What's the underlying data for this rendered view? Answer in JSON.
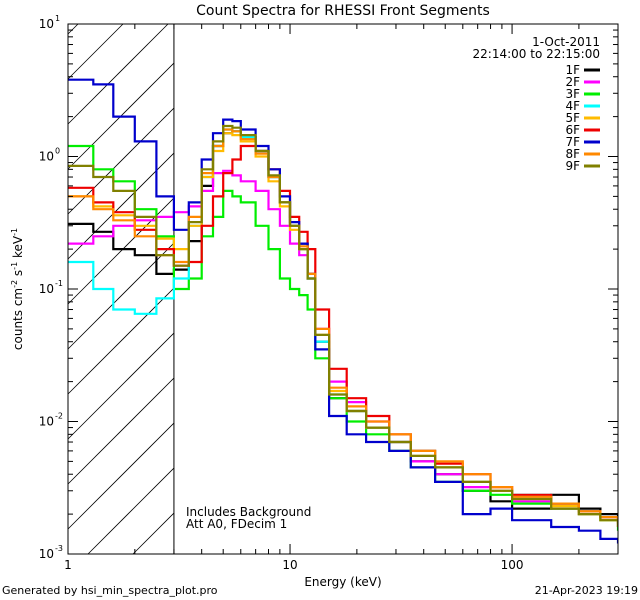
{
  "chart_data": {
    "type": "line",
    "title": "Count Spectra for RHESSI Front Segments",
    "xlabel": "Energy (keV)",
    "ylabel_parts": {
      "a": "counts cm",
      "e1": "-2",
      "b": " s",
      "e2": "-1",
      "c": " keV",
      "e3": "-1"
    },
    "x_scale": "log",
    "y_scale": "log",
    "xlim": [
      1,
      300
    ],
    "ylim": [
      0.001,
      10
    ],
    "x_ticks": [
      {
        "value": 1,
        "label": "1"
      },
      {
        "value": 10,
        "label": "10"
      },
      {
        "value": 100,
        "label": "100"
      }
    ],
    "y_ticks": [
      {
        "value": 10,
        "base": "10",
        "exp": "1"
      },
      {
        "value": 1,
        "base": "10",
        "exp": "0"
      },
      {
        "value": 0.1,
        "base": "10",
        "exp": "-1"
      },
      {
        "value": 0.01,
        "base": "10",
        "exp": "-2"
      },
      {
        "value": 0.001,
        "base": "10",
        "exp": "-3"
      }
    ],
    "shaded_region": {
      "x_from": 1,
      "x_to": 3
    },
    "date": "1-Oct-2011",
    "time_range": "22:14:00 to 22:15:00",
    "annotations": [
      "Includes Background",
      "Att A0, FDecim 1"
    ],
    "series": [
      {
        "name": "1F",
        "color": "#000000",
        "points": [
          [
            1.0,
            0.31
          ],
          [
            1.3,
            0.27
          ],
          [
            1.6,
            0.2
          ],
          [
            2.0,
            0.18
          ],
          [
            2.5,
            0.13
          ],
          [
            3.0,
            0.14
          ],
          [
            3.5,
            0.23
          ],
          [
            4.0,
            0.6
          ],
          [
            4.5,
            1.2
          ],
          [
            5.0,
            1.5
          ],
          [
            5.5,
            1.55
          ],
          [
            6.0,
            1.4
          ],
          [
            7.0,
            1.1
          ],
          [
            8.0,
            0.7
          ],
          [
            9.0,
            0.45
          ],
          [
            10.0,
            0.3
          ],
          [
            11.0,
            0.22
          ],
          [
            12.0,
            0.12
          ],
          [
            13.0,
            0.04
          ],
          [
            15.0,
            0.015
          ],
          [
            18.0,
            0.012
          ],
          [
            22.0,
            0.009
          ],
          [
            28.0,
            0.007
          ],
          [
            35.0,
            0.005
          ],
          [
            45.0,
            0.004
          ],
          [
            60.0,
            0.003
          ],
          [
            80.0,
            0.0025
          ],
          [
            100.0,
            0.0022
          ],
          [
            150.0,
            0.0028
          ],
          [
            200.0,
            0.0022
          ],
          [
            250.0,
            0.002
          ],
          [
            300.0,
            0.0018
          ]
        ]
      },
      {
        "name": "2F",
        "color": "#ff00ff",
        "points": [
          [
            1.0,
            0.22
          ],
          [
            1.3,
            0.25
          ],
          [
            1.6,
            0.3
          ],
          [
            2.0,
            0.33
          ],
          [
            2.5,
            0.35
          ],
          [
            3.0,
            0.38
          ],
          [
            3.5,
            0.42
          ],
          [
            4.0,
            0.55
          ],
          [
            4.5,
            0.75
          ],
          [
            5.0,
            0.78
          ],
          [
            5.5,
            0.72
          ],
          [
            6.0,
            0.65
          ],
          [
            7.0,
            0.55
          ],
          [
            8.0,
            0.4
          ],
          [
            9.0,
            0.3
          ],
          [
            10.0,
            0.22
          ],
          [
            11.0,
            0.18
          ],
          [
            12.0,
            0.13
          ],
          [
            13.0,
            0.05
          ],
          [
            15.0,
            0.02
          ],
          [
            18.0,
            0.014
          ],
          [
            22.0,
            0.01
          ],
          [
            28.0,
            0.007
          ],
          [
            35.0,
            0.005
          ],
          [
            45.0,
            0.004
          ],
          [
            60.0,
            0.0032
          ],
          [
            80.0,
            0.003
          ],
          [
            100.0,
            0.0025
          ],
          [
            150.0,
            0.0022
          ],
          [
            200.0,
            0.002
          ],
          [
            250.0,
            0.0019
          ],
          [
            300.0,
            0.0018
          ]
        ]
      },
      {
        "name": "3F",
        "color": "#00ee00",
        "points": [
          [
            1.0,
            1.2
          ],
          [
            1.3,
            0.8
          ],
          [
            1.6,
            0.65
          ],
          [
            2.0,
            0.4
          ],
          [
            2.5,
            0.25
          ],
          [
            3.0,
            0.1
          ],
          [
            3.5,
            0.12
          ],
          [
            4.0,
            0.25
          ],
          [
            4.5,
            0.35
          ],
          [
            5.0,
            0.55
          ],
          [
            5.5,
            0.5
          ],
          [
            6.0,
            0.45
          ],
          [
            7.0,
            0.3
          ],
          [
            8.0,
            0.2
          ],
          [
            9.0,
            0.12
          ],
          [
            10.0,
            0.1
          ],
          [
            11.0,
            0.09
          ],
          [
            12.0,
            0.07
          ],
          [
            13.0,
            0.03
          ],
          [
            15.0,
            0.015
          ],
          [
            18.0,
            0.01
          ],
          [
            22.0,
            0.008
          ],
          [
            28.0,
            0.006
          ],
          [
            35.0,
            0.0045
          ],
          [
            45.0,
            0.0035
          ],
          [
            60.0,
            0.003
          ],
          [
            80.0,
            0.0028
          ],
          [
            100.0,
            0.0024
          ],
          [
            150.0,
            0.0022
          ],
          [
            200.0,
            0.002
          ],
          [
            250.0,
            0.0018
          ],
          [
            300.0,
            0.0015
          ]
        ]
      },
      {
        "name": "4F",
        "color": "#00ffff",
        "points": [
          [
            1.0,
            0.16
          ],
          [
            1.3,
            0.1
          ],
          [
            1.6,
            0.07
          ],
          [
            2.0,
            0.065
          ],
          [
            2.5,
            0.085
          ],
          [
            3.0,
            0.12
          ],
          [
            3.5,
            0.3
          ],
          [
            4.0,
            0.7
          ],
          [
            4.5,
            1.2
          ],
          [
            5.0,
            1.6
          ],
          [
            5.5,
            1.55
          ],
          [
            6.0,
            1.4
          ],
          [
            7.0,
            1.1
          ],
          [
            8.0,
            0.7
          ],
          [
            9.0,
            0.45
          ],
          [
            10.0,
            0.3
          ],
          [
            11.0,
            0.2
          ],
          [
            12.0,
            0.12
          ],
          [
            13.0,
            0.04
          ],
          [
            15.0,
            0.016
          ],
          [
            18.0,
            0.012
          ],
          [
            22.0,
            0.009
          ],
          [
            28.0,
            0.007
          ],
          [
            35.0,
            0.006
          ],
          [
            45.0,
            0.0045
          ],
          [
            60.0,
            0.0035
          ],
          [
            80.0,
            0.003
          ],
          [
            100.0,
            0.0028
          ],
          [
            150.0,
            0.0024
          ],
          [
            200.0,
            0.0021
          ],
          [
            250.0,
            0.0019
          ],
          [
            300.0,
            0.0017
          ]
        ]
      },
      {
        "name": "5F",
        "color": "#ffbb00",
        "points": [
          [
            1.0,
            0.5
          ],
          [
            1.3,
            0.42
          ],
          [
            1.6,
            0.36
          ],
          [
            2.0,
            0.3
          ],
          [
            2.5,
            0.24
          ],
          [
            3.0,
            0.2
          ],
          [
            3.5,
            0.3
          ],
          [
            4.0,
            0.7
          ],
          [
            4.5,
            1.1
          ],
          [
            5.0,
            1.5
          ],
          [
            5.5,
            1.45
          ],
          [
            6.0,
            1.3
          ],
          [
            7.0,
            1.0
          ],
          [
            8.0,
            0.65
          ],
          [
            9.0,
            0.42
          ],
          [
            10.0,
            0.28
          ],
          [
            11.0,
            0.2
          ],
          [
            12.0,
            0.13
          ],
          [
            13.0,
            0.045
          ],
          [
            15.0,
            0.017
          ],
          [
            18.0,
            0.012
          ],
          [
            22.0,
            0.009
          ],
          [
            28.0,
            0.007
          ],
          [
            35.0,
            0.0055
          ],
          [
            45.0,
            0.0045
          ],
          [
            60.0,
            0.0035
          ],
          [
            80.0,
            0.003
          ],
          [
            100.0,
            0.0026
          ],
          [
            150.0,
            0.0023
          ],
          [
            200.0,
            0.002
          ],
          [
            250.0,
            0.0018
          ],
          [
            300.0,
            0.0016
          ]
        ]
      },
      {
        "name": "6F",
        "color": "#ee0000",
        "points": [
          [
            1.0,
            0.58
          ],
          [
            1.3,
            0.45
          ],
          [
            1.6,
            0.38
          ],
          [
            2.0,
            0.28
          ],
          [
            2.5,
            0.2
          ],
          [
            3.0,
            0.15
          ],
          [
            3.5,
            0.16
          ],
          [
            4.0,
            0.3
          ],
          [
            4.5,
            0.5
          ],
          [
            5.0,
            0.75
          ],
          [
            5.5,
            0.95
          ],
          [
            6.0,
            1.2
          ],
          [
            7.0,
            1.1
          ],
          [
            8.0,
            0.8
          ],
          [
            9.0,
            0.55
          ],
          [
            10.0,
            0.35
          ],
          [
            11.0,
            0.27
          ],
          [
            12.0,
            0.2
          ],
          [
            13.0,
            0.07
          ],
          [
            15.0,
            0.025
          ],
          [
            18.0,
            0.015
          ],
          [
            22.0,
            0.011
          ],
          [
            28.0,
            0.008
          ],
          [
            35.0,
            0.006
          ],
          [
            45.0,
            0.0048
          ],
          [
            60.0,
            0.004
          ],
          [
            80.0,
            0.0032
          ],
          [
            100.0,
            0.0028
          ],
          [
            150.0,
            0.0024
          ],
          [
            200.0,
            0.0021
          ],
          [
            250.0,
            0.0019
          ],
          [
            300.0,
            0.0017
          ]
        ]
      },
      {
        "name": "7F",
        "color": "#0000cc",
        "points": [
          [
            1.0,
            3.8
          ],
          [
            1.3,
            3.5
          ],
          [
            1.6,
            2.0
          ],
          [
            2.0,
            1.3
          ],
          [
            2.5,
            0.5
          ],
          [
            3.0,
            0.28
          ],
          [
            3.5,
            0.45
          ],
          [
            4.0,
            0.95
          ],
          [
            4.5,
            1.5
          ],
          [
            5.0,
            1.9
          ],
          [
            5.5,
            1.85
          ],
          [
            6.0,
            1.6
          ],
          [
            7.0,
            1.2
          ],
          [
            8.0,
            0.8
          ],
          [
            9.0,
            0.5
          ],
          [
            10.0,
            0.32
          ],
          [
            11.0,
            0.22
          ],
          [
            12.0,
            0.13
          ],
          [
            13.0,
            0.035
          ],
          [
            15.0,
            0.011
          ],
          [
            18.0,
            0.008
          ],
          [
            22.0,
            0.007
          ],
          [
            28.0,
            0.006
          ],
          [
            35.0,
            0.0045
          ],
          [
            45.0,
            0.0035
          ],
          [
            60.0,
            0.002
          ],
          [
            80.0,
            0.0022
          ],
          [
            100.0,
            0.0018
          ],
          [
            150.0,
            0.0016
          ],
          [
            200.0,
            0.0015
          ],
          [
            250.0,
            0.0013
          ],
          [
            300.0,
            0.0012
          ]
        ]
      },
      {
        "name": "8F",
        "color": "#ff8800",
        "points": [
          [
            1.0,
            0.5
          ],
          [
            1.3,
            0.4
          ],
          [
            1.6,
            0.33
          ],
          [
            2.0,
            0.25
          ],
          [
            2.5,
            0.18
          ],
          [
            3.0,
            0.16
          ],
          [
            3.5,
            0.35
          ],
          [
            4.0,
            0.75
          ],
          [
            4.5,
            1.2
          ],
          [
            5.0,
            1.6
          ],
          [
            5.5,
            1.55
          ],
          [
            6.0,
            1.35
          ],
          [
            7.0,
            1.05
          ],
          [
            8.0,
            0.7
          ],
          [
            9.0,
            0.45
          ],
          [
            10.0,
            0.3
          ],
          [
            11.0,
            0.21
          ],
          [
            12.0,
            0.13
          ],
          [
            13.0,
            0.05
          ],
          [
            15.0,
            0.018
          ],
          [
            18.0,
            0.013
          ],
          [
            22.0,
            0.01
          ],
          [
            28.0,
            0.008
          ],
          [
            35.0,
            0.006
          ],
          [
            45.0,
            0.005
          ],
          [
            60.0,
            0.004
          ],
          [
            80.0,
            0.0032
          ],
          [
            100.0,
            0.0027
          ],
          [
            150.0,
            0.0024
          ],
          [
            200.0,
            0.0021
          ],
          [
            250.0,
            0.0019
          ],
          [
            300.0,
            0.0016
          ]
        ]
      },
      {
        "name": "9F",
        "color": "#808000",
        "points": [
          [
            1.0,
            0.85
          ],
          [
            1.3,
            0.7
          ],
          [
            1.6,
            0.55
          ],
          [
            2.0,
            0.35
          ],
          [
            2.5,
            0.18
          ],
          [
            3.0,
            0.15
          ],
          [
            3.5,
            0.32
          ],
          [
            4.0,
            0.8
          ],
          [
            4.5,
            1.3
          ],
          [
            5.0,
            1.7
          ],
          [
            5.5,
            1.65
          ],
          [
            6.0,
            1.45
          ],
          [
            7.0,
            1.1
          ],
          [
            8.0,
            0.72
          ],
          [
            9.0,
            0.45
          ],
          [
            10.0,
            0.3
          ],
          [
            11.0,
            0.2
          ],
          [
            12.0,
            0.12
          ],
          [
            13.0,
            0.045
          ],
          [
            15.0,
            0.016
          ],
          [
            18.0,
            0.012
          ],
          [
            22.0,
            0.009
          ],
          [
            28.0,
            0.007
          ],
          [
            35.0,
            0.0055
          ],
          [
            45.0,
            0.0045
          ],
          [
            60.0,
            0.0035
          ],
          [
            80.0,
            0.003
          ],
          [
            100.0,
            0.0026
          ],
          [
            150.0,
            0.0022
          ],
          [
            200.0,
            0.002
          ],
          [
            250.0,
            0.0018
          ],
          [
            300.0,
            0.0016
          ]
        ]
      }
    ]
  },
  "footer": {
    "generated_by": "Generated by hsi_min_spectra_plot.pro",
    "timestamp": "21-Apr-2023 19:19"
  }
}
